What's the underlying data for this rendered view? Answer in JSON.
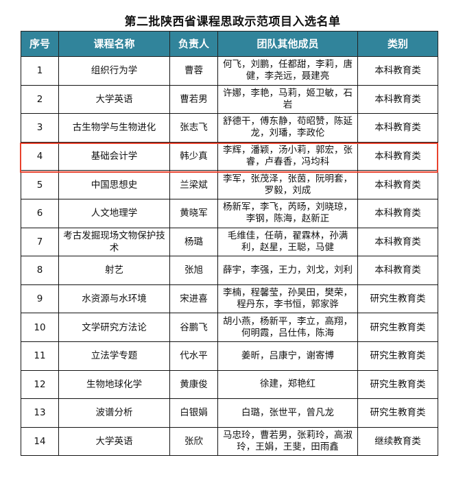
{
  "title": "第二批陕西省课程思政示范项目入选名单",
  "highlight_color": "#e8412c",
  "header_color": "#31849b",
  "columns": [
    "序号",
    "课程名称",
    "负责人",
    "团队其他成员",
    "类别"
  ],
  "rows": [
    {
      "no": "1",
      "course": "组织行为学",
      "leader": "曹蓉",
      "team": "何飞，刘鹏，任都甜，李莉，唐健，李尧远，聂建亮",
      "category": "本科教育类"
    },
    {
      "no": "2",
      "course": "大学英语",
      "leader": "曹若男",
      "team": "许娜，李艳，马莉，姬卫敏，石岩",
      "category": "本科教育类"
    },
    {
      "no": "3",
      "course": "古生物学与生物进化",
      "leader": "张志飞",
      "team": "舒德干，傅东静，苟昭赞，陈延龙，刘璠，李政伦",
      "category": "本科教育类"
    },
    {
      "no": "4",
      "course": "基础会计学",
      "leader": "韩少真",
      "team": "李辉，潘颖，汤小莉，郭宏，张睿，卢春香，冯均科",
      "category": "本科教育类"
    },
    {
      "no": "5",
      "course": "中国思想史",
      "leader": "兰梁斌",
      "team": "李军，张茂泽，张茵，阮明套，罗毅，刘成",
      "category": "本科教育类"
    },
    {
      "no": "6",
      "course": "人文地理学",
      "leader": "黄晓军",
      "team": "杨新军，李飞，芮旸，刘晓琼，李钢，陈海，赵新正",
      "category": "本科教育类"
    },
    {
      "no": "7",
      "course": "考古发掘现场文物保护技术",
      "leader": "杨璐",
      "team": "毛维佳，任萌，翟霖林，孙满利，赵星，王聪，马健",
      "category": "本科教育类"
    },
    {
      "no": "8",
      "course": "射艺",
      "leader": "张旭",
      "team": "薛宇，李强，王力，刘戈，刘利",
      "category": "本科教育类"
    },
    {
      "no": "9",
      "course": "水资源与水环境",
      "leader": "宋进喜",
      "team": "李楠，程馨莹，孙昊田，樊荣，程丹东，李书恒，郭家骅",
      "category": "研究生教育类"
    },
    {
      "no": "10",
      "course": "文学研究方法论",
      "leader": "谷鹏飞",
      "team": "胡小燕，杨新平，李立，高翔，何明霞，吕仕伟，陈海",
      "category": "研究生教育类"
    },
    {
      "no": "11",
      "course": "立法学专题",
      "leader": "代水平",
      "team": "姜昕，吕康宁，谢寄博",
      "category": "研究生教育类"
    },
    {
      "no": "12",
      "course": "生物地球化学",
      "leader": "黄康俊",
      "team": "徐建，郑艳红",
      "category": "研究生教育类"
    },
    {
      "no": "13",
      "course": "波谱分析",
      "leader": "白银娟",
      "team": "白璐，张世平，曾凡龙",
      "category": "研究生教育类"
    },
    {
      "no": "14",
      "course": "大学英语",
      "leader": "张欣",
      "team": "马忠玲，曹若男，张莉玲，高淑玲，王娟，王斐，田雨鑫",
      "category": "继续教育类"
    }
  ]
}
